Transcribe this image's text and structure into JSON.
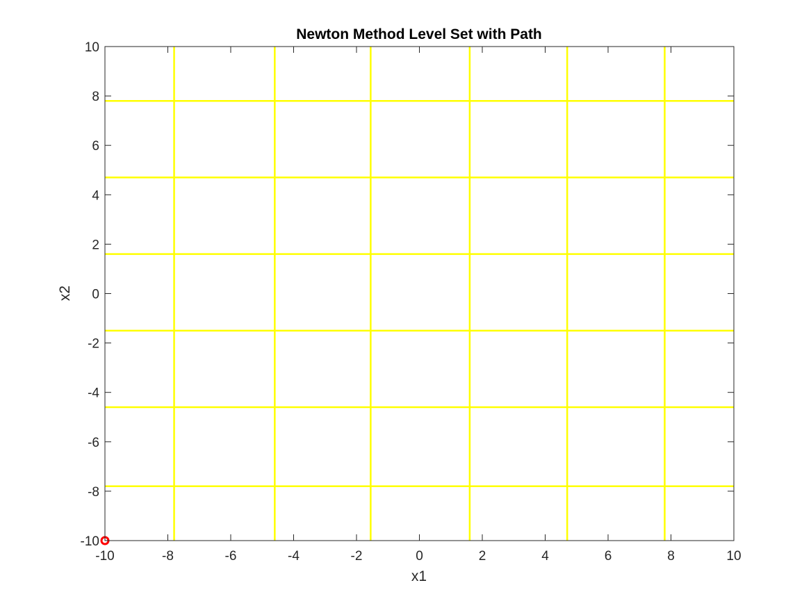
{
  "chart_data": {
    "type": "contour",
    "title": "Newton Method Level Set with Path",
    "xlabel": "x1",
    "ylabel": "x2",
    "xlim": [
      -10,
      10
    ],
    "ylim": [
      -10,
      10
    ],
    "xticks": [
      -10,
      -8,
      -6,
      -4,
      -2,
      0,
      2,
      4,
      6,
      8,
      10
    ],
    "yticks": [
      -10,
      -8,
      -6,
      -4,
      -2,
      0,
      2,
      4,
      6,
      8,
      10
    ],
    "grid": false,
    "level_set": {
      "color": "#ffff00",
      "vertical_lines_x": [
        -7.8,
        -4.6,
        -1.55,
        1.6,
        4.7,
        7.8
      ],
      "horizontal_lines_y": [
        7.8,
        4.7,
        1.6,
        -1.5,
        -4.6,
        -7.8
      ]
    },
    "path": {
      "color": "#ff0000",
      "marker": "circle",
      "points": [
        [
          -10,
          -10
        ]
      ]
    }
  }
}
